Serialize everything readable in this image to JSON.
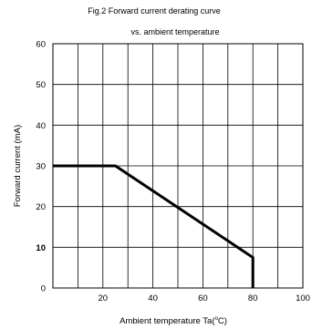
{
  "chart_data": {
    "type": "line",
    "title": "Fig.2  Forward current derating curve",
    "subtitle": "vs. ambient temperature",
    "xlabel_main": "Ambient temperature Ta(",
    "xlabel_deg": "o",
    "xlabel_unit": "C)",
    "ylabel": "Forward current (mA)",
    "xlim": [
      0,
      100
    ],
    "ylim": [
      0,
      60
    ],
    "x_ticks": [
      20,
      40,
      60,
      80,
      100
    ],
    "y_ticks": [
      0,
      10,
      20,
      30,
      40,
      50,
      60
    ],
    "grid_x": [
      0,
      10,
      20,
      30,
      40,
      50,
      60,
      70,
      80,
      90,
      100
    ],
    "grid_y": [
      0,
      10,
      20,
      30,
      40,
      50,
      60
    ],
    "grid": true,
    "series": [
      {
        "x": [
          0,
          25,
          80,
          80
        ],
        "y": [
          30,
          30,
          7.5,
          0
        ]
      }
    ]
  }
}
